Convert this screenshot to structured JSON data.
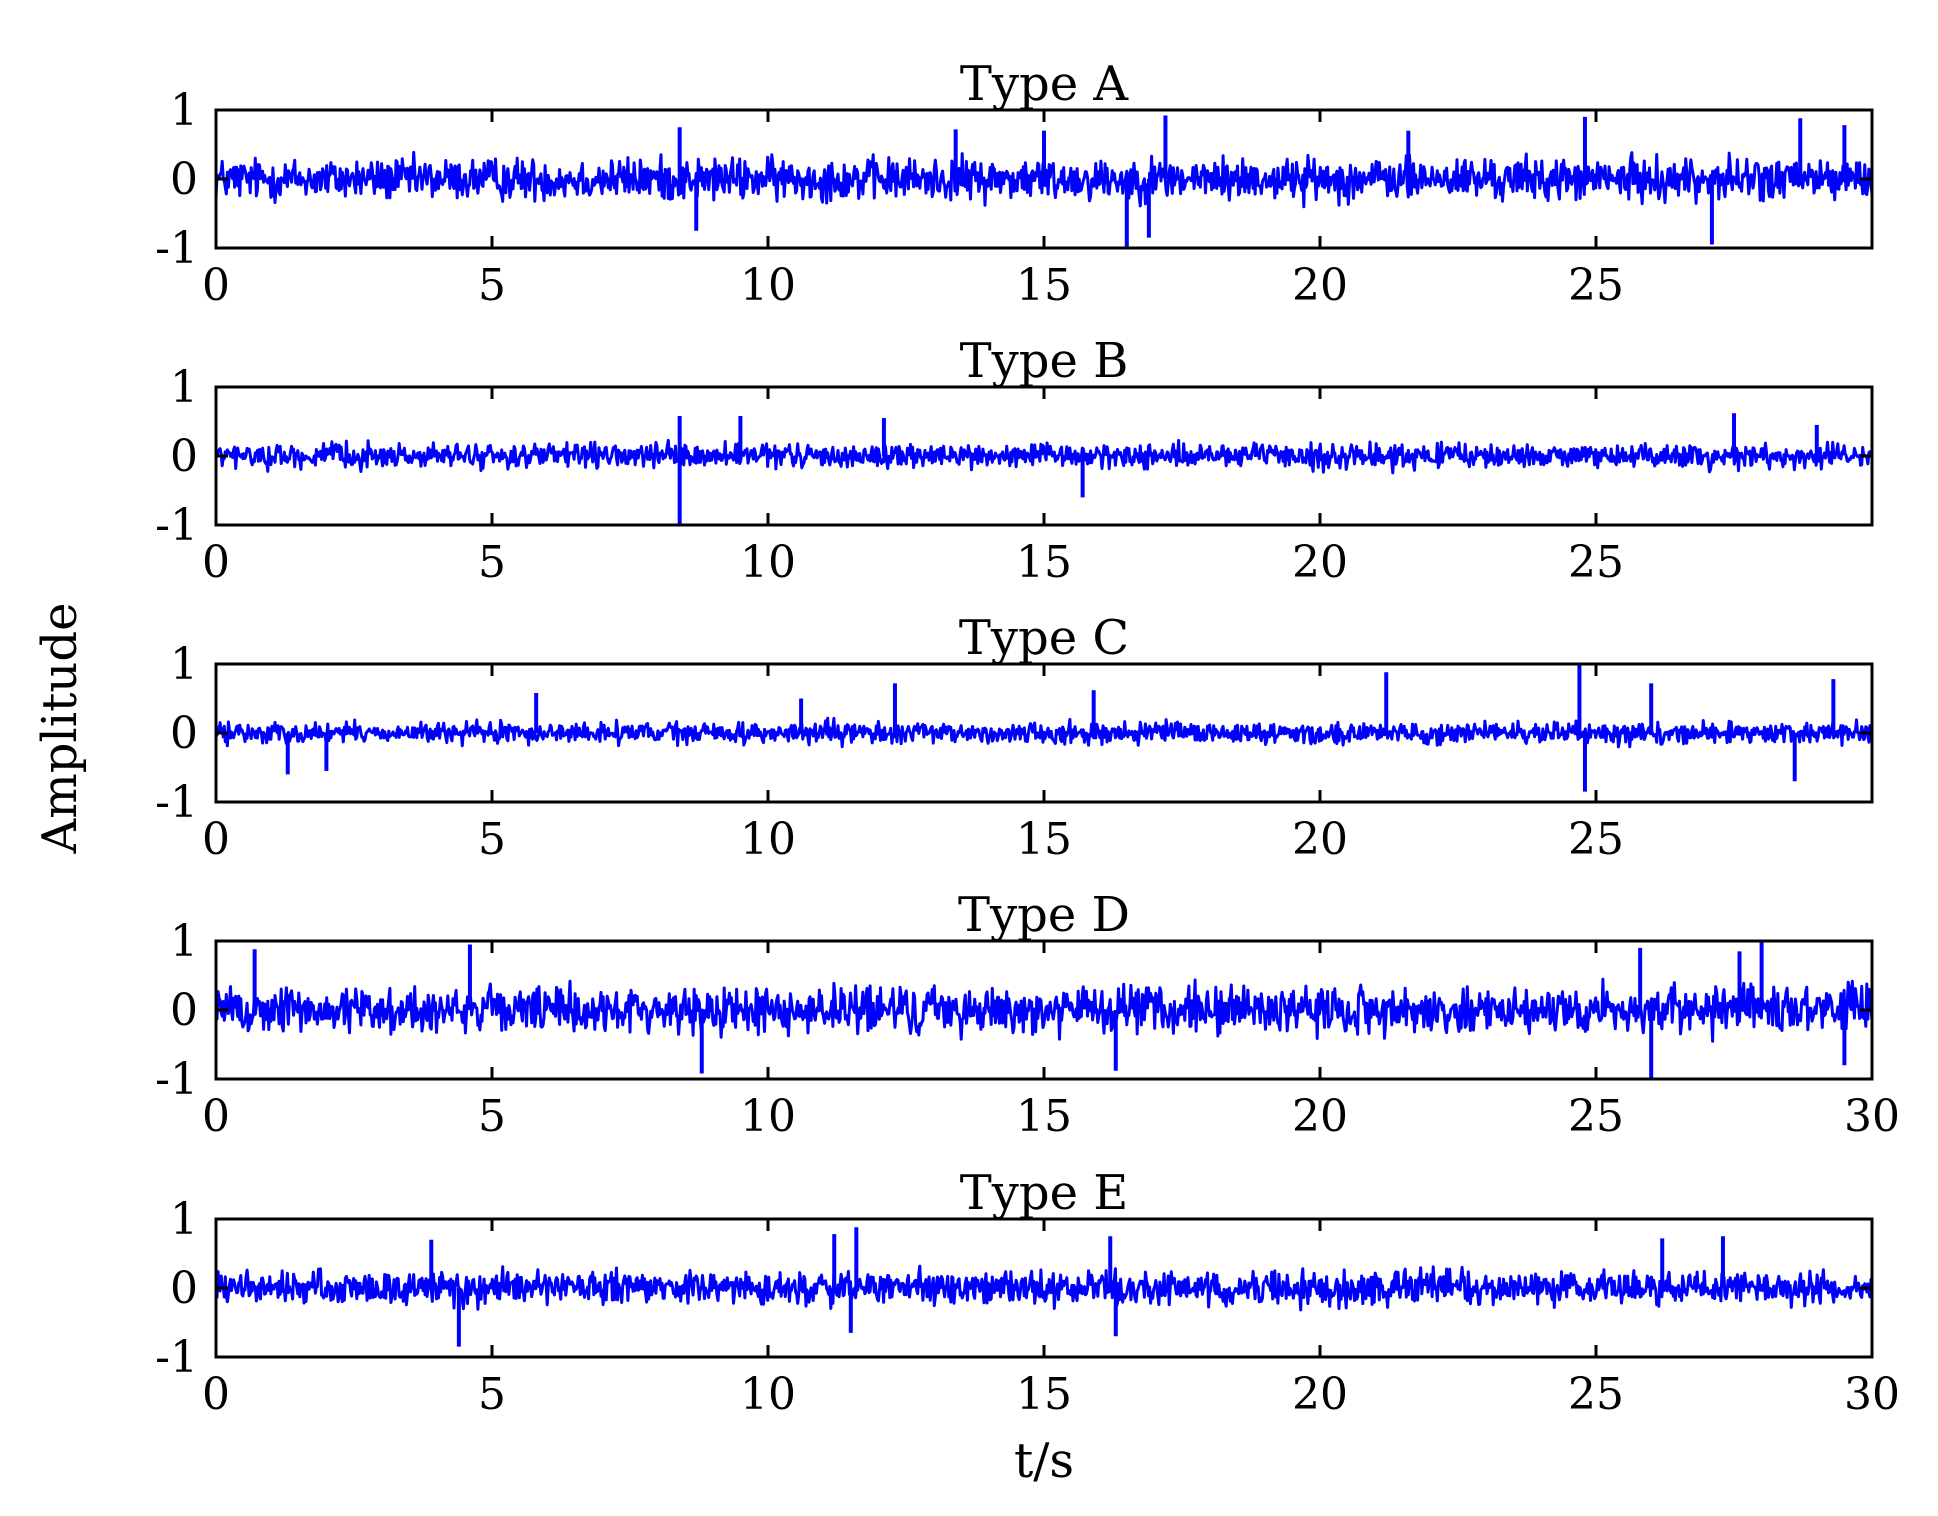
{
  "chart_data": {
    "type": "line",
    "ylabel": "Amplitude",
    "xlabel": "t/s",
    "series_color": "#0000ff",
    "panels": [
      {
        "title": "Type A",
        "xlim": [
          0,
          30
        ],
        "ylim": [
          -1,
          1
        ],
        "xticks": [
          "0",
          "5",
          "10",
          "15",
          "20",
          "25"
        ],
        "yticks": [
          "1",
          "0",
          "-1"
        ],
        "noise_amplitude": 0.45,
        "spikes": [
          [
            8.4,
            0.75
          ],
          [
            8.7,
            -0.75
          ],
          [
            13.4,
            0.72
          ],
          [
            15.0,
            0.7
          ],
          [
            16.5,
            -0.98
          ],
          [
            16.9,
            -0.85
          ],
          [
            17.2,
            0.92
          ],
          [
            21.6,
            0.7
          ],
          [
            24.8,
            0.9
          ],
          [
            27.1,
            -0.95
          ],
          [
            28.7,
            0.88
          ],
          [
            29.5,
            0.78
          ]
        ]
      },
      {
        "title": "Type B",
        "xlim": [
          0,
          30
        ],
        "ylim": [
          -1,
          1
        ],
        "xticks": [
          "0",
          "5",
          "10",
          "15",
          "20",
          "25"
        ],
        "yticks": [
          "1",
          "0",
          "-1"
        ],
        "noise_amplitude": 0.25,
        "spikes": [
          [
            8.4,
            -0.98
          ],
          [
            8.4,
            0.58
          ],
          [
            9.5,
            0.58
          ],
          [
            12.1,
            0.55
          ],
          [
            15.7,
            -0.6
          ],
          [
            27.5,
            0.62
          ],
          [
            29.0,
            0.45
          ]
        ]
      },
      {
        "title": "Type C",
        "xlim": [
          0,
          30
        ],
        "ylim": [
          -1,
          1
        ],
        "xticks": [
          "0",
          "5",
          "10",
          "15",
          "20",
          "25"
        ],
        "yticks": [
          "1",
          "0",
          "-1"
        ],
        "noise_amplitude": 0.22,
        "spikes": [
          [
            1.3,
            -0.6
          ],
          [
            2.0,
            -0.55
          ],
          [
            5.8,
            0.58
          ],
          [
            10.6,
            0.5
          ],
          [
            12.3,
            0.72
          ],
          [
            15.9,
            0.62
          ],
          [
            21.2,
            0.88
          ],
          [
            24.7,
            0.98
          ],
          [
            24.8,
            -0.85
          ],
          [
            26.0,
            0.72
          ],
          [
            29.3,
            0.78
          ],
          [
            28.6,
            -0.7
          ]
        ]
      },
      {
        "title": "Type D",
        "xlim": [
          0,
          30
        ],
        "ylim": [
          -1,
          1
        ],
        "xticks": [
          "0",
          "5",
          "10",
          "15",
          "20",
          "25",
          "30"
        ],
        "yticks": [
          "1",
          "0",
          "-1"
        ],
        "noise_amplitude": 0.5,
        "spikes": [
          [
            0.7,
            0.88
          ],
          [
            4.6,
            0.95
          ],
          [
            8.8,
            -0.92
          ],
          [
            16.3,
            -0.88
          ],
          [
            25.8,
            0.9
          ],
          [
            26.0,
            -0.98
          ],
          [
            27.6,
            0.85
          ],
          [
            28.0,
            0.98
          ],
          [
            29.5,
            -0.8
          ]
        ]
      },
      {
        "title": "Type E",
        "xlim": [
          0,
          30
        ],
        "ylim": [
          -1,
          1
        ],
        "xticks": [
          "0",
          "5",
          "10",
          "15",
          "20",
          "25",
          "30"
        ],
        "yticks": [
          "1",
          "0",
          "-1"
        ],
        "noise_amplitude": 0.35,
        "spikes": [
          [
            3.9,
            0.7
          ],
          [
            4.4,
            -0.85
          ],
          [
            11.2,
            0.78
          ],
          [
            11.6,
            0.88
          ],
          [
            11.5,
            -0.65
          ],
          [
            16.2,
            0.75
          ],
          [
            16.3,
            -0.7
          ],
          [
            26.2,
            0.72
          ],
          [
            27.3,
            0.75
          ]
        ]
      }
    ]
  }
}
